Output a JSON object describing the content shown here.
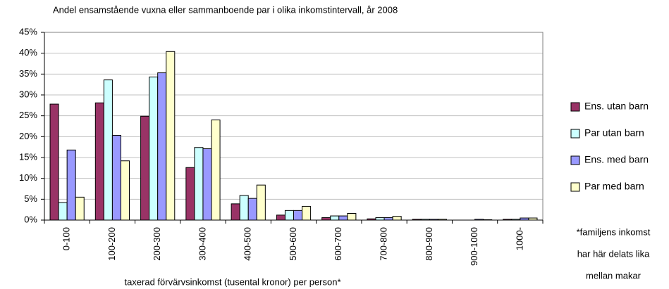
{
  "chart_data": {
    "type": "bar",
    "title": "Andel ensamstående vuxna eller sammanboende par i olika inkomstintervall, år 2008",
    "x_label": "taxerad förvärvsinkomst (tusental kronor) per person*",
    "categories": [
      "0-100",
      "100-200",
      "200-300",
      "300-400",
      "400-500",
      "500-600",
      "600-700",
      "700-800",
      "800-900",
      "900-1000",
      "1000-"
    ],
    "series": [
      {
        "name": "Ens. utan barn",
        "color": "#993366",
        "values": [
          27.8,
          28.1,
          24.9,
          12.6,
          3.9,
          1.2,
          0.6,
          0.3,
          0.2,
          0,
          0.2
        ]
      },
      {
        "name": "Par utan barn",
        "color": "#ccffff",
        "values": [
          4.2,
          33.6,
          34.3,
          17.4,
          5.9,
          2.3,
          1.0,
          0.6,
          0.2,
          0,
          0.2
        ]
      },
      {
        "name": "Ens. med barn",
        "color": "#9999ff",
        "values": [
          16.8,
          20.3,
          35.3,
          17.1,
          5.2,
          2.3,
          1.0,
          0.6,
          0.2,
          0.2,
          0.5
        ]
      },
      {
        "name": "Par med barn",
        "color": "#ffffcc",
        "values": [
          5.5,
          14.2,
          40.4,
          24.0,
          8.4,
          3.3,
          1.6,
          0.9,
          0.2,
          0.1,
          0.5
        ]
      }
    ],
    "ylim": [
      0,
      45
    ],
    "yticks": [
      {
        "value": 0,
        "label": "0%"
      },
      {
        "value": 5,
        "label": "5%"
      },
      {
        "value": 10,
        "label": "10%"
      },
      {
        "value": 15,
        "label": "15%"
      },
      {
        "value": 20,
        "label": "20%"
      },
      {
        "value": 25,
        "label": "25%"
      },
      {
        "value": 30,
        "label": "30%"
      },
      {
        "value": 35,
        "label": "35%"
      },
      {
        "value": 40,
        "label": "40%"
      },
      {
        "value": 45,
        "label": "45%"
      }
    ],
    "grid": true,
    "legend": "right",
    "annotation": [
      "*familjens inkomst",
      "har här delats lika",
      "mellan makar"
    ]
  }
}
